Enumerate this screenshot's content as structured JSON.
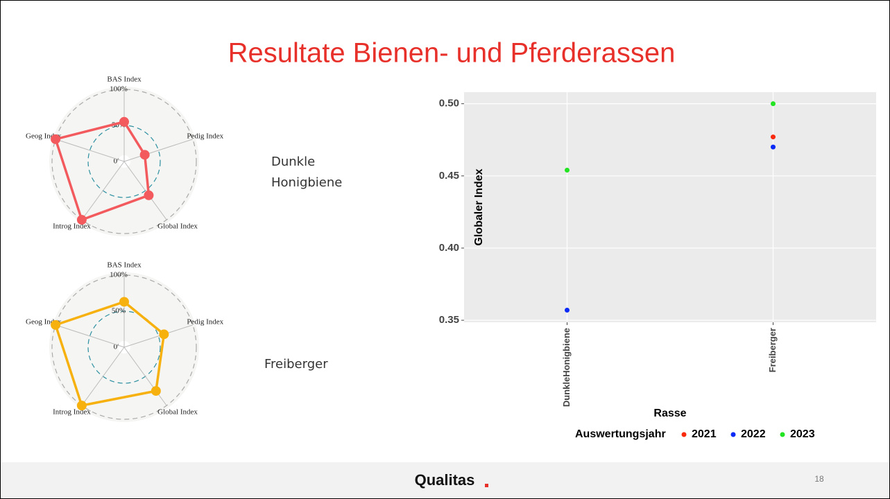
{
  "title": "Resultate Bienen- und Pferderassen",
  "footer": {
    "logo": "Qualitas",
    "page_number": "18"
  },
  "chart_data": [
    {
      "type": "radar",
      "axes": [
        "BAS Index",
        "Pedig Index",
        "Global Index",
        "Introg Index",
        "Geog Index"
      ],
      "rlim": [
        0,
        100
      ],
      "rticks": [
        {
          "value": 0,
          "label": "0%"
        },
        {
          "value": 50,
          "label": "50%"
        },
        {
          "value": 100,
          "label": "100%"
        }
      ],
      "series": [
        {
          "name": "Dunkle Honigbiene",
          "color": "#f25a5e",
          "values": [
            55,
            30,
            58,
            100,
            100
          ]
        }
      ]
    },
    {
      "type": "radar",
      "axes": [
        "BAS Index",
        "Pedig Index",
        "Global Index",
        "Introg Index",
        "Geog Index"
      ],
      "rlim": [
        0,
        100
      ],
      "rticks": [
        {
          "value": 0,
          "label": "0%"
        },
        {
          "value": 50,
          "label": "50%"
        },
        {
          "value": 100,
          "label": "100%"
        }
      ],
      "series": [
        {
          "name": "Freiberger",
          "color": "#f7b10f",
          "values": [
            63,
            58,
            75,
            100,
            100
          ]
        }
      ]
    },
    {
      "type": "scatter",
      "categories": [
        "DunkleHonigbiene",
        "Freiberger"
      ],
      "x_label": "Rasse",
      "y_label": "Globaler Index",
      "legend_title": "Auswertungsjahr",
      "ylim": [
        0.3486,
        0.508
      ],
      "yticks": [
        0.35,
        {
          "value": 0.4,
          "label": "0.40"
        },
        0.45,
        {
          "value": 0.5,
          "label": "0.50"
        }
      ],
      "grid": true,
      "series": [
        {
          "name": "2021",
          "color": "#f8290c",
          "values": [
            null,
            0.477
          ]
        },
        {
          "name": "2022",
          "color": "#0a2af5",
          "values": [
            0.357,
            0.47
          ]
        },
        {
          "name": "2023",
          "color": "#22e422",
          "values": [
            0.454,
            0.5
          ]
        }
      ]
    }
  ]
}
